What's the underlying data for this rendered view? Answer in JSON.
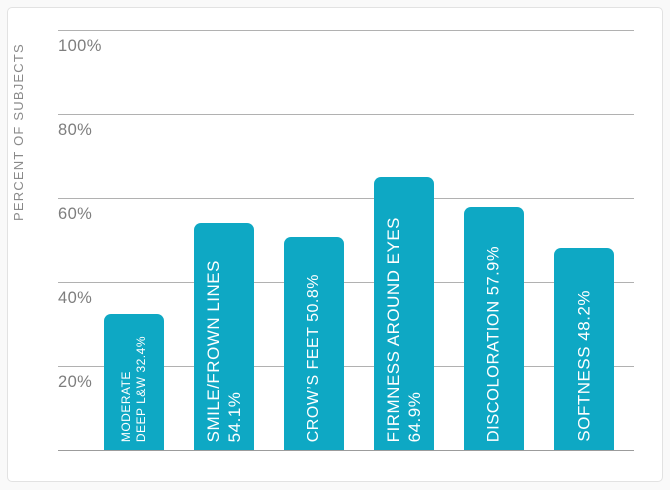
{
  "page": {
    "background": "#f9f9f9"
  },
  "card": {
    "background": "#ffffff",
    "border_color": "#e2e2e2"
  },
  "chart_data": {
    "type": "bar",
    "title": "",
    "xlabel": "",
    "ylabel": "PERCENT OF SUBJECTS",
    "ylim": [
      0,
      100
    ],
    "grid": true,
    "legend": false,
    "y_ticks": [
      {
        "value": 100,
        "label": "100%"
      },
      {
        "value": 80,
        "label": "80%"
      },
      {
        "value": 60,
        "label": "60%"
      },
      {
        "value": 40,
        "label": "40%"
      },
      {
        "value": 20,
        "label": "20%"
      },
      {
        "value": 0,
        "label": ""
      }
    ],
    "bars": [
      {
        "category": "Moderate Deep L&W",
        "value": 32.4,
        "label_lines": [
          "MODERATE",
          "DEEP L&W 32.4%"
        ]
      },
      {
        "category": "Smile/Frown Lines",
        "value": 54.1,
        "label_lines": [
          "SMILE/FROWN LINES",
          "54.1%"
        ]
      },
      {
        "category": "Crow's Feet",
        "value": 50.8,
        "label_lines": [
          "CROW’S FEET 50.8%"
        ]
      },
      {
        "category": "Firmness Around Eyes",
        "value": 64.9,
        "label_lines": [
          "FIRMNESS AROUND EYES",
          "64.9%"
        ]
      },
      {
        "category": "Discoloration",
        "value": 57.9,
        "label_lines": [
          "DISCOLORATION 57.9%"
        ]
      },
      {
        "category": "Softness",
        "value": 48.2,
        "label_lines": [
          "SOFTNESS 48.2%"
        ]
      }
    ],
    "colors": {
      "bar": "#0ea8c4",
      "bar_text": "#ffffff",
      "grid_line": "#b1b1b1",
      "axis_line": "#9c9c9c",
      "tick_text": "#7e7e7e",
      "axis_label_text": "#8a8a8a"
    }
  }
}
